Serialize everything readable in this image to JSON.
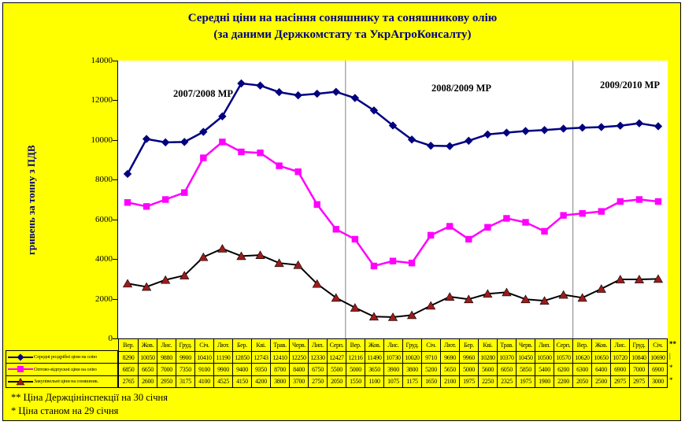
{
  "title": {
    "line1": "Середні ціни на насіння соняшнику та соняшникову олію",
    "line2": "(за даними Держкомстату та УкрАгроКонсалту)"
  },
  "y_axis": {
    "label": "гривень за тонну з ПДВ",
    "ticks": [
      0,
      2000,
      4000,
      6000,
      8000,
      10000,
      12000,
      14000
    ]
  },
  "period_labels": [
    "2007/2008 МР",
    "2008/2009 МР",
    "2009/2010 МР"
  ],
  "footnotes": [
    "** Ціна Держцінінспекції на  30 січня",
    "* Ціна станом на 29 січня"
  ],
  "table_marks": {
    "header": "**",
    "rows": [
      "|",
      "*",
      "*"
    ]
  },
  "colors": {
    "background": "#FFFF00",
    "title": "#000080",
    "divider": "#808080"
  },
  "chart_data": {
    "type": "line",
    "title": "Середні ціни на насіння соняшнику та соняшникову олію (за даними Держкомстату та УкрАгроКонсалту)",
    "ylabel": "гривень за тонну з ПДВ",
    "ylim": [
      0,
      14000
    ],
    "grid": false,
    "legend_position": "bottom-left",
    "dividers_after_index": [
      11,
      23
    ],
    "categories": [
      "Вер.",
      "Жов.",
      "Лис.",
      "Груд.",
      "Січ.",
      "Лют.",
      "Бер.",
      "Кві.",
      "Трав.",
      "Черв.",
      "Лип.",
      "Серп.",
      "Вер.",
      "Жов.",
      "Лис.",
      "Груд.",
      "Січ.",
      "Лют.",
      "Бер.",
      "Кві.",
      "Трав.",
      "Черв.",
      "Лип.",
      "Серп.",
      "Вер.",
      "Жов.",
      "Лис.",
      "Груд.",
      "Січ."
    ],
    "series": [
      {
        "name": "Середні роздрібні ціни на олію",
        "marker": "diamond",
        "color": "#000080",
        "values": [
          8290,
          10050,
          9880,
          9900,
          10410,
          11190,
          12850,
          12743,
          12410,
          12250,
          12330,
          12427,
          12116,
          11490,
          10730,
          10020,
          9710,
          9690,
          9960,
          10280,
          10370,
          10450,
          10500,
          10570,
          10620,
          10650,
          10720,
          10840,
          10690
        ]
      },
      {
        "name": "Оптово-відпускні ціни на олію",
        "marker": "square",
        "color": "#FF00FF",
        "values": [
          6850,
          6650,
          7000,
          7350,
          9100,
          9900,
          9400,
          9350,
          8700,
          8400,
          6750,
          5500,
          5000,
          3650,
          3900,
          3800,
          5200,
          5650,
          5000,
          5600,
          6050,
          5850,
          5400,
          6200,
          6300,
          6400,
          6900,
          7000,
          6900
        ]
      },
      {
        "name": "Закупівельні ціни на соняшник.",
        "marker": "triangle",
        "color": "#9B1C1C",
        "line_color": "#000000",
        "values": [
          2765,
          2600,
          2950,
          3175,
          4100,
          4525,
          4150,
          4200,
          3800,
          3700,
          2750,
          2050,
          1550,
          1100,
          1075,
          1175,
          1650,
          2100,
          1975,
          2250,
          2325,
          1975,
          1900,
          2200,
          2050,
          2500,
          2975,
          2975,
          3000
        ]
      }
    ]
  }
}
